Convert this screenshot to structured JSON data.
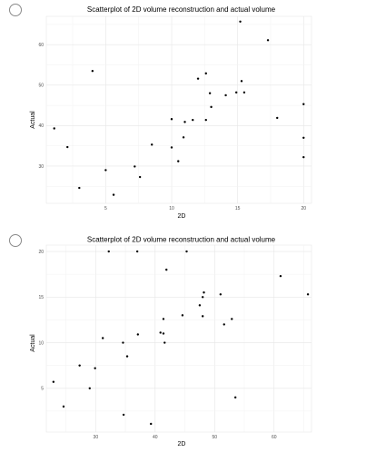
{
  "options": [
    {
      "chart_data": {
        "type": "scatter",
        "title": "Scatterplot of 2D volume reconstruction and actual volume",
        "xlabel": "2D",
        "ylabel": "Actual",
        "xlim": [
          0.5,
          20.6
        ],
        "ylim": [
          20.8,
          67
        ],
        "xticks": [
          "5",
          "10",
          "15",
          "20"
        ],
        "yticks": [
          "30",
          "40",
          "50",
          "60"
        ],
        "grid": true,
        "points": [
          {
            "x": 1.1,
            "y": 39.3
          },
          {
            "x": 2.1,
            "y": 34.7
          },
          {
            "x": 3.0,
            "y": 24.6
          },
          {
            "x": 4.0,
            "y": 53.5
          },
          {
            "x": 5.0,
            "y": 29.0
          },
          {
            "x": 5.6,
            "y": 22.9
          },
          {
            "x": 7.2,
            "y": 29.9
          },
          {
            "x": 7.6,
            "y": 27.3
          },
          {
            "x": 8.5,
            "y": 35.3
          },
          {
            "x": 10.0,
            "y": 41.6
          },
          {
            "x": 10.0,
            "y": 34.6
          },
          {
            "x": 10.5,
            "y": 31.2
          },
          {
            "x": 10.9,
            "y": 37.1
          },
          {
            "x": 11.0,
            "y": 40.9
          },
          {
            "x": 11.6,
            "y": 41.4
          },
          {
            "x": 12.0,
            "y": 51.6
          },
          {
            "x": 12.6,
            "y": 52.9
          },
          {
            "x": 12.6,
            "y": 41.4
          },
          {
            "x": 12.9,
            "y": 48.0
          },
          {
            "x": 13.0,
            "y": 44.6
          },
          {
            "x": 14.1,
            "y": 47.5
          },
          {
            "x": 14.9,
            "y": 48.2
          },
          {
            "x": 15.2,
            "y": 65.7
          },
          {
            "x": 15.3,
            "y": 51.0
          },
          {
            "x": 15.5,
            "y": 48.2
          },
          {
            "x": 17.3,
            "y": 61.1
          },
          {
            "x": 18.0,
            "y": 41.9
          },
          {
            "x": 20.0,
            "y": 45.3
          },
          {
            "x": 20.0,
            "y": 37.0
          },
          {
            "x": 20.0,
            "y": 32.2
          }
        ]
      }
    },
    {
      "chart_data": {
        "type": "scatter",
        "title": "Scatterplot of 2D volume reconstruction and actual volume",
        "xlabel": "2D",
        "ylabel": "Actual",
        "xlim": [
          21.7,
          66.3
        ],
        "ylim": [
          0.2,
          20.7
        ],
        "xticks": [
          "30",
          "40",
          "50",
          "60"
        ],
        "yticks": [
          "5",
          "10",
          "15",
          "20"
        ],
        "grid": true,
        "points": [
          {
            "x": 22.9,
            "y": 5.7
          },
          {
            "x": 24.6,
            "y": 3.0
          },
          {
            "x": 27.3,
            "y": 7.5
          },
          {
            "x": 29.0,
            "y": 5.0
          },
          {
            "x": 29.9,
            "y": 7.2
          },
          {
            "x": 31.2,
            "y": 10.5
          },
          {
            "x": 32.2,
            "y": 20.0
          },
          {
            "x": 34.6,
            "y": 10.0
          },
          {
            "x": 34.7,
            "y": 2.1
          },
          {
            "x": 35.3,
            "y": 8.5
          },
          {
            "x": 37.0,
            "y": 20.0
          },
          {
            "x": 37.1,
            "y": 10.9
          },
          {
            "x": 39.3,
            "y": 1.1
          },
          {
            "x": 41.4,
            "y": 11.0
          },
          {
            "x": 41.6,
            "y": 10.0
          },
          {
            "x": 41.9,
            "y": 18.0
          },
          {
            "x": 41.4,
            "y": 12.6
          },
          {
            "x": 40.9,
            "y": 11.1
          },
          {
            "x": 44.6,
            "y": 13.0
          },
          {
            "x": 45.3,
            "y": 20.0
          },
          {
            "x": 47.5,
            "y": 14.1
          },
          {
            "x": 48.0,
            "y": 12.9
          },
          {
            "x": 48.0,
            "y": 15.0
          },
          {
            "x": 48.2,
            "y": 15.5
          },
          {
            "x": 51.0,
            "y": 15.3
          },
          {
            "x": 51.6,
            "y": 12.0
          },
          {
            "x": 52.9,
            "y": 12.6
          },
          {
            "x": 53.5,
            "y": 4.0
          },
          {
            "x": 61.1,
            "y": 17.3
          },
          {
            "x": 65.7,
            "y": 15.3
          }
        ]
      }
    }
  ]
}
